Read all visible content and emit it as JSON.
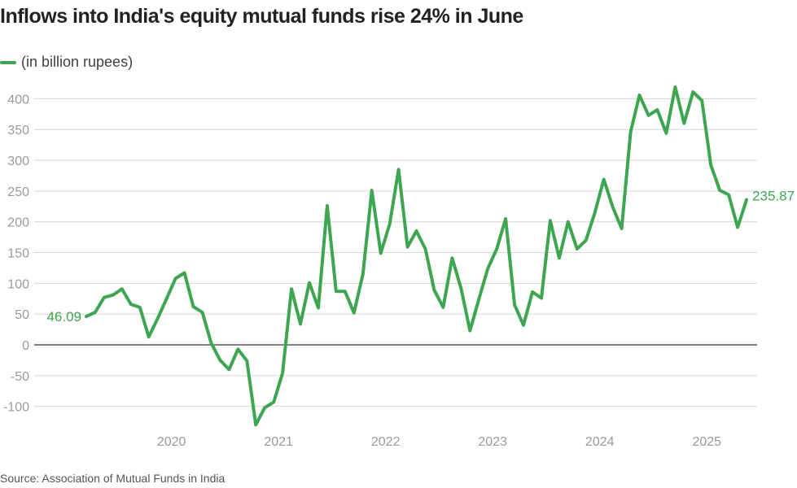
{
  "chart_data": {
    "type": "line",
    "title": "Inflows into India's equity mutual funds rise 24% in June",
    "legend": "(in billion rupees)",
    "source": "Source: Association of Mutual Funds in India",
    "color": "#3ea651",
    "ylim": [
      -130,
      420
    ],
    "yticks": [
      -100,
      -50,
      0,
      50,
      100,
      150,
      200,
      250,
      300,
      350,
      400
    ],
    "xticks": [
      "2020",
      "2021",
      "2022",
      "2023",
      "2024",
      "2025"
    ],
    "x": [
      "2019-04",
      "2019-05",
      "2019-06",
      "2019-07",
      "2019-08",
      "2019-09",
      "2019-10",
      "2019-11",
      "2019-12",
      "2020-01",
      "2020-02",
      "2020-03",
      "2020-04",
      "2020-05",
      "2020-06",
      "2020-07",
      "2020-08",
      "2020-09",
      "2020-10",
      "2020-11",
      "2020-12",
      "2021-01",
      "2021-02",
      "2021-03",
      "2021-04",
      "2021-05",
      "2021-06",
      "2021-07",
      "2021-08",
      "2021-09",
      "2021-10",
      "2021-11",
      "2021-12",
      "2022-01",
      "2022-02",
      "2022-03",
      "2022-04",
      "2022-05",
      "2022-06",
      "2022-07",
      "2022-08",
      "2022-09",
      "2022-10",
      "2022-11",
      "2022-12",
      "2023-01",
      "2023-02",
      "2023-03",
      "2023-04",
      "2023-05",
      "2023-06",
      "2023-07",
      "2023-08",
      "2023-09",
      "2023-10",
      "2023-11",
      "2023-12",
      "2024-01",
      "2024-02",
      "2024-03",
      "2024-04",
      "2024-05",
      "2024-06",
      "2024-07",
      "2024-08",
      "2024-09",
      "2024-10",
      "2024-11",
      "2024-12",
      "2025-01",
      "2025-02",
      "2025-03",
      "2025-04",
      "2025-05",
      "2025-06"
    ],
    "series": [
      {
        "values": [
          46.09,
          53,
          77,
          81,
          91,
          66,
          61,
          13,
          43,
          75,
          108,
          117,
          62,
          53,
          3,
          -25,
          -40,
          -7,
          -26,
          -130,
          -102,
          -93,
          -46,
          91,
          34,
          101,
          60,
          226,
          87,
          87,
          52,
          115,
          251,
          149,
          196,
          285,
          159,
          185,
          156,
          89,
          61,
          141,
          92,
          23,
          74,
          124,
          156,
          205,
          65,
          32,
          86,
          76,
          202,
          141,
          200,
          156,
          170,
          215,
          269,
          224,
          189,
          346,
          406,
          373,
          382,
          344,
          419,
          360,
          411,
          397,
          292,
          251,
          244,
          191,
          235.87
        ]
      }
    ],
    "start_label": "46.09",
    "end_label": "235.87"
  }
}
